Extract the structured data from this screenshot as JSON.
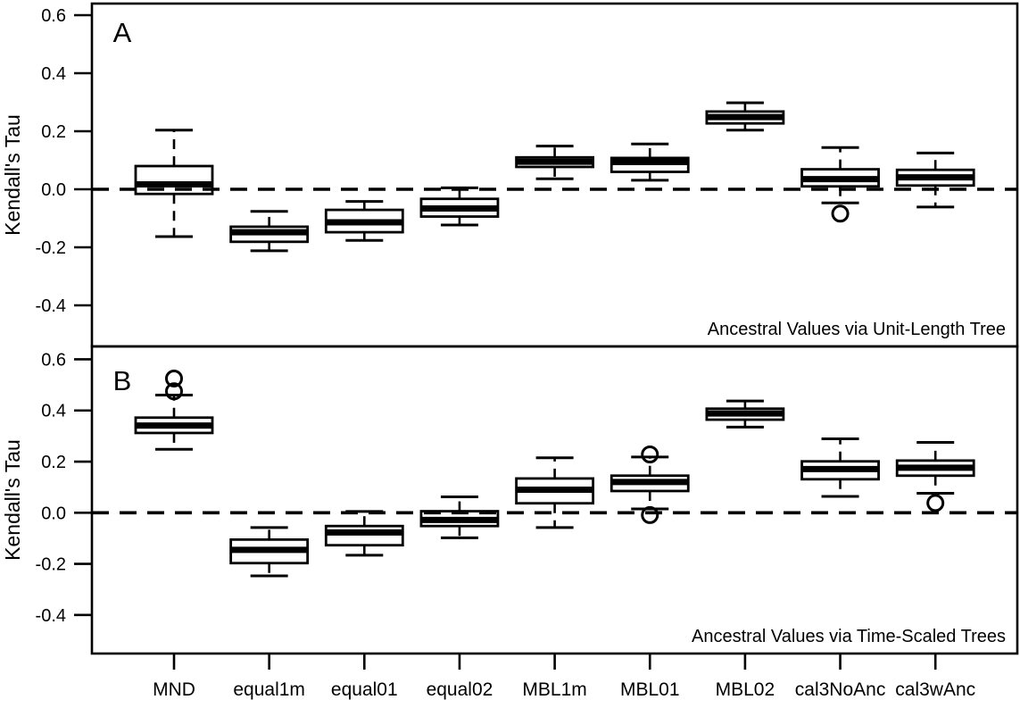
{
  "figure": {
    "background_color": "#ffffff",
    "line_color": "#000000",
    "y_axis_title": "Kendall's Tau",
    "y_tick_labels": [
      "0.6",
      "0.4",
      "0.2",
      "0.0",
      "-0.2",
      "-0.4"
    ],
    "y_tick_values": [
      0.6,
      0.4,
      0.2,
      0.0,
      -0.2,
      -0.4
    ],
    "categories": [
      "MND",
      "equal1m",
      "equal01",
      "equal02",
      "MBL1m",
      "MBL01",
      "MBL02",
      "cal3NoAnc",
      "cal3wAnc"
    ]
  },
  "chart_data": [
    {
      "type": "boxplot",
      "panel_label": "A",
      "annotation": "Ancestral Values via Unit-Length Tree",
      "ylabel": "Kendall's Tau",
      "ylim": [
        -0.55,
        0.65
      ],
      "yticks": [
        0.6,
        0.4,
        0.2,
        0.0,
        -0.2,
        -0.4
      ],
      "zero_reference_line": 0.0,
      "grid": false,
      "categories": [
        "MND",
        "equal1m",
        "equal01",
        "equal02",
        "MBL1m",
        "MBL01",
        "MBL02",
        "cal3NoAnc",
        "cal3wAnc"
      ],
      "boxes": [
        {
          "category": "MND",
          "whislo": -0.163,
          "q1": -0.016,
          "med": 0.017,
          "q3": 0.08,
          "whishi": 0.204,
          "outliers": []
        },
        {
          "category": "equal1m",
          "whislo": -0.212,
          "q1": -0.181,
          "med": -0.148,
          "q3": -0.129,
          "whishi": -0.076,
          "outliers": []
        },
        {
          "category": "equal01",
          "whislo": -0.176,
          "q1": -0.148,
          "med": -0.114,
          "q3": -0.071,
          "whishi": -0.042,
          "outliers": []
        },
        {
          "category": "equal02",
          "whislo": -0.123,
          "q1": -0.094,
          "med": -0.066,
          "q3": -0.033,
          "whishi": 0.005,
          "outliers": []
        },
        {
          "category": "MBL1m",
          "whislo": 0.036,
          "q1": 0.077,
          "med": 0.095,
          "q3": 0.11,
          "whishi": 0.149,
          "outliers": []
        },
        {
          "category": "MBL01",
          "whislo": 0.031,
          "q1": 0.06,
          "med": 0.094,
          "q3": 0.108,
          "whishi": 0.156,
          "outliers": []
        },
        {
          "category": "MBL02",
          "whislo": 0.204,
          "q1": 0.227,
          "med": 0.249,
          "q3": 0.268,
          "whishi": 0.298,
          "outliers": []
        },
        {
          "category": "cal3NoAnc",
          "whislo": -0.047,
          "q1": 0.01,
          "med": 0.035,
          "q3": 0.069,
          "whishi": 0.144,
          "outliers": [
            -0.084
          ]
        },
        {
          "category": "cal3wAnc",
          "whislo": -0.061,
          "q1": 0.013,
          "med": 0.041,
          "q3": 0.067,
          "whishi": 0.125,
          "outliers": []
        }
      ]
    },
    {
      "type": "boxplot",
      "panel_label": "B",
      "annotation": "Ancestral Values via Time-Scaled Trees",
      "ylabel": "Kendall's Tau",
      "ylim": [
        -0.55,
        0.65
      ],
      "yticks": [
        0.6,
        0.4,
        0.2,
        0.0,
        -0.2,
        -0.4
      ],
      "zero_reference_line": 0.0,
      "grid": false,
      "categories": [
        "MND",
        "equal1m",
        "equal01",
        "equal02",
        "MBL1m",
        "MBL01",
        "MBL02",
        "cal3NoAnc",
        "cal3wAnc"
      ],
      "boxes": [
        {
          "category": "MND",
          "whislo": 0.248,
          "q1": 0.312,
          "med": 0.341,
          "q3": 0.372,
          "whishi": 0.46,
          "outliers": [
            0.475,
            0.525
          ]
        },
        {
          "category": "equal1m",
          "whislo": -0.247,
          "q1": -0.197,
          "med": -0.145,
          "q3": -0.105,
          "whishi": -0.058,
          "outliers": []
        },
        {
          "category": "equal01",
          "whislo": -0.166,
          "q1": -0.127,
          "med": -0.077,
          "q3": -0.052,
          "whishi": 0.005,
          "outliers": []
        },
        {
          "category": "equal02",
          "whislo": -0.098,
          "q1": -0.052,
          "med": -0.028,
          "q3": 0.006,
          "whishi": 0.062,
          "outliers": []
        },
        {
          "category": "MBL1m",
          "whislo": -0.058,
          "q1": 0.037,
          "med": 0.09,
          "q3": 0.134,
          "whishi": 0.215,
          "outliers": []
        },
        {
          "category": "MBL01",
          "whislo": 0.015,
          "q1": 0.085,
          "med": 0.12,
          "q3": 0.145,
          "whishi": 0.218,
          "outliers": [
            0.228,
            -0.009
          ]
        },
        {
          "category": "MBL02",
          "whislo": 0.335,
          "q1": 0.364,
          "med": 0.388,
          "q3": 0.407,
          "whishi": 0.437,
          "outliers": []
        },
        {
          "category": "cal3NoAnc",
          "whislo": 0.064,
          "q1": 0.131,
          "med": 0.171,
          "q3": 0.201,
          "whishi": 0.289,
          "outliers": []
        },
        {
          "category": "cal3wAnc",
          "whislo": 0.076,
          "q1": 0.145,
          "med": 0.176,
          "q3": 0.204,
          "whishi": 0.275,
          "outliers": [
            0.038
          ]
        }
      ]
    }
  ]
}
